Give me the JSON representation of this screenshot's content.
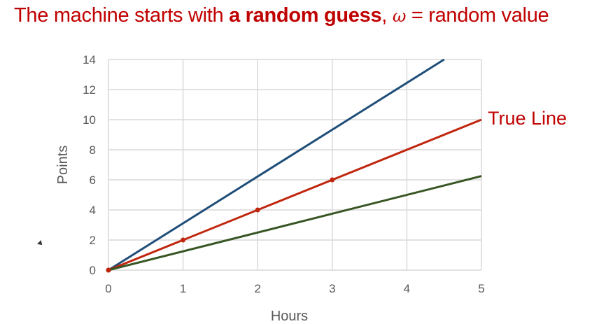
{
  "title": {
    "prefix": "The machine starts with ",
    "bold": "a random guess",
    "sep": ", ",
    "omega": "ω",
    "suffix": " = random value"
  },
  "chart_data": {
    "type": "line",
    "xlabel": "Hours",
    "ylabel": "Points",
    "xlim": [
      0,
      5
    ],
    "ylim": [
      0,
      14
    ],
    "xticks": [
      0,
      1,
      2,
      3,
      4,
      5
    ],
    "yticks": [
      0,
      2,
      4,
      6,
      8,
      10,
      12,
      14
    ],
    "grid": true,
    "series": [
      {
        "color": "#1f4e79",
        "x": [
          0,
          4.5
        ],
        "y": [
          0,
          14
        ],
        "markers": []
      },
      {
        "name": "True Line",
        "color": "#c0260e",
        "x": [
          0,
          5
        ],
        "y": [
          0,
          10
        ],
        "markers": [
          [
            0,
            0
          ],
          [
            1,
            2
          ],
          [
            2,
            4
          ],
          [
            3,
            6
          ]
        ]
      },
      {
        "color": "#375623",
        "x": [
          0,
          5
        ],
        "y": [
          0,
          6.25
        ],
        "markers": []
      }
    ],
    "annotation": {
      "text": "True Line",
      "color": "#c00000"
    }
  }
}
